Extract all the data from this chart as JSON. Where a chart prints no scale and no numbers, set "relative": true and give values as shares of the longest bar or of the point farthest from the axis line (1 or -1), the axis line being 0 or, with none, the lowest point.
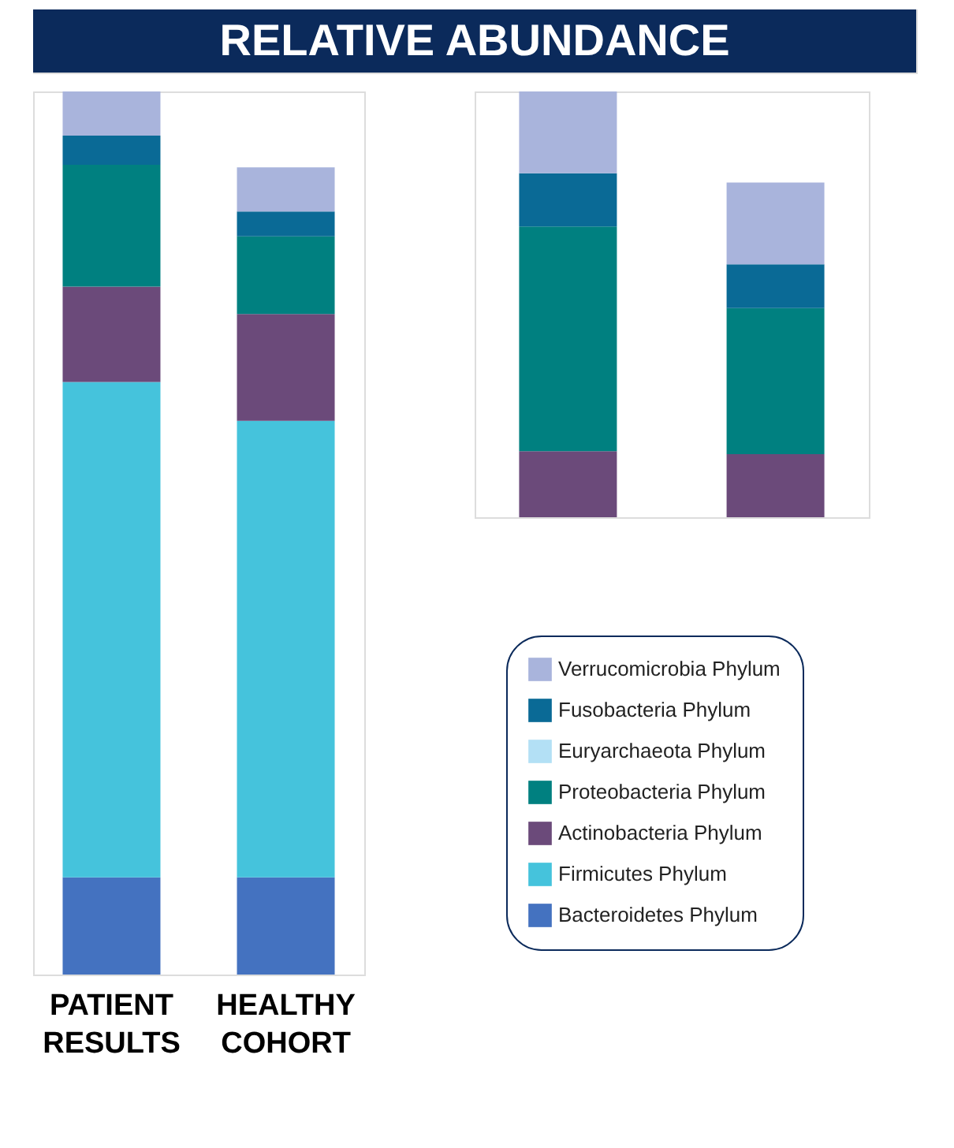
{
  "chart_data": [
    {
      "type": "bar",
      "title": "RELATIVE ABUNDANCE",
      "stacked": true,
      "relative": true,
      "tick_labels": "x",
      "legend": "bottom right",
      "categories": [
        "PATIENT RESULTS",
        "HEALTHY COHORT"
      ],
      "series": [
        {
          "name": "Bacteroidetes Phylum",
          "color": "#4472c0",
          "values": [
            0.11,
            0.11
          ]
        },
        {
          "name": "Firmicutes Phylum",
          "color": "#45c3dc",
          "values": [
            0.561,
            0.517
          ]
        },
        {
          "name": "Actinobacteria Phylum",
          "color": "#6b4a7a",
          "values": [
            0.108,
            0.121
          ]
        },
        {
          "name": "Proteobacteria Phylum",
          "color": "#008080",
          "values": [
            0.138,
            0.088
          ]
        },
        {
          "name": "Euryarchaeota Phylum",
          "color": "#b3e0f5",
          "values": [
            0,
            0
          ]
        },
        {
          "name": "Fusobacteria Phylum",
          "color": "#0a6a96",
          "values": [
            0.033,
            0.028
          ]
        },
        {
          "name": "Verrucomicrobia Phylum",
          "color": "#a9b4dc",
          "values": [
            0.05,
            0.05
          ]
        }
      ]
    },
    {
      "type": "bar",
      "stacked": true,
      "relative": true,
      "tick_labels": false,
      "categories": [
        null,
        null
      ],
      "series": [
        {
          "color": "#6b4a7a",
          "values": [
            0.155,
            0.148
          ]
        },
        {
          "color": "#008080",
          "values": [
            0.528,
            0.343
          ]
        },
        {
          "color": "#0a6a96",
          "values": [
            0.125,
            0.103
          ]
        },
        {
          "color": "#a9b4dc",
          "values": [
            0.192,
            0.192
          ]
        }
      ]
    }
  ]
}
